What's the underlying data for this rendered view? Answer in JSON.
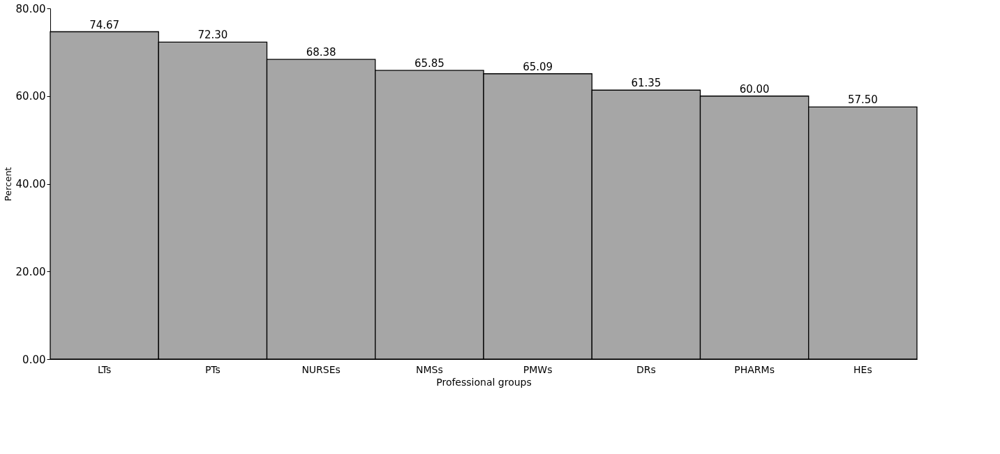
{
  "chart_data": {
    "type": "bar",
    "xlabel": "Professional groups",
    "ylabel": "Percent",
    "categories": [
      "LTs",
      "PTs",
      "NURSEs",
      "NMSs",
      "PMWs",
      "DRs",
      "PHARMs",
      "HEs"
    ],
    "values": [
      74.67,
      72.3,
      68.38,
      65.85,
      65.09,
      61.35,
      60.0,
      57.5
    ],
    "value_labels": [
      "74.67",
      "72.30",
      "68.38",
      "65.85",
      "65.09",
      "61.35",
      "60.00",
      "57.50"
    ],
    "color": "#a6a6a6",
    "ylim": [
      0,
      80
    ],
    "yticks": [
      {
        "value": 0,
        "label": "0.00"
      },
      {
        "value": 20,
        "label": "20.00"
      },
      {
        "value": 40,
        "label": "40.00"
      },
      {
        "value": 60,
        "label": "60.00"
      },
      {
        "value": 80,
        "label": "80.00"
      }
    ],
    "grid": false
  }
}
